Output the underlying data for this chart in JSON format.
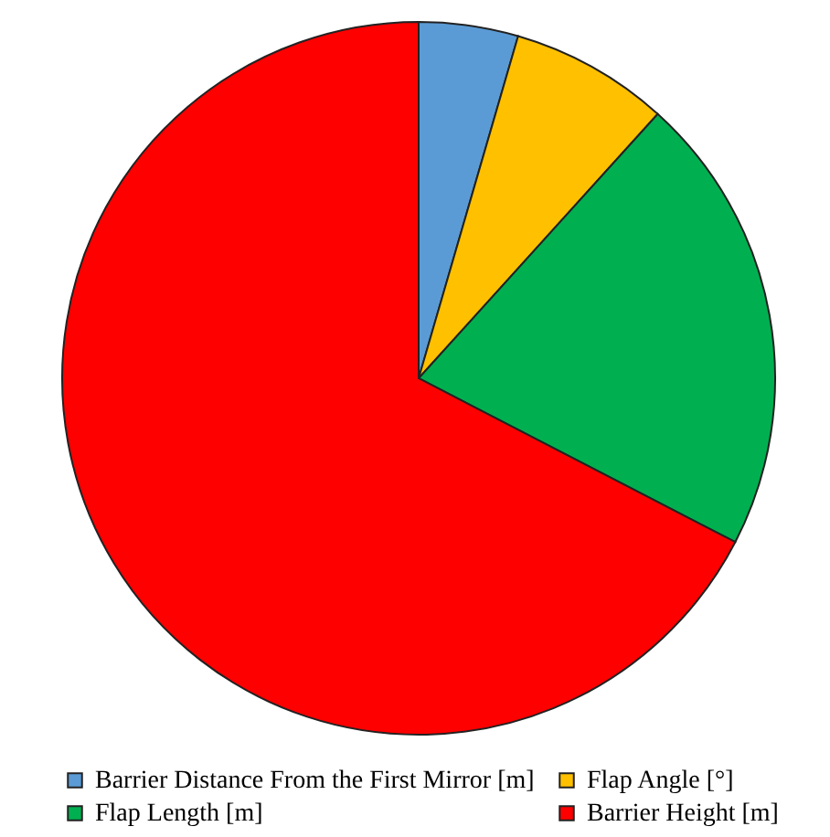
{
  "chart_data": {
    "type": "pie",
    "categories": [
      "Barrier Distance From the First Mirror [m]",
      "Flap Angle [°]",
      "Flap Length [m]",
      "Barrier Height [m]"
    ],
    "values": [
      4.5,
      7.2,
      20.9,
      67.4
    ],
    "colors": [
      "#5b9bd5",
      "#ffc000",
      "#00b050",
      "#ff0000"
    ],
    "legend": "bottom"
  }
}
